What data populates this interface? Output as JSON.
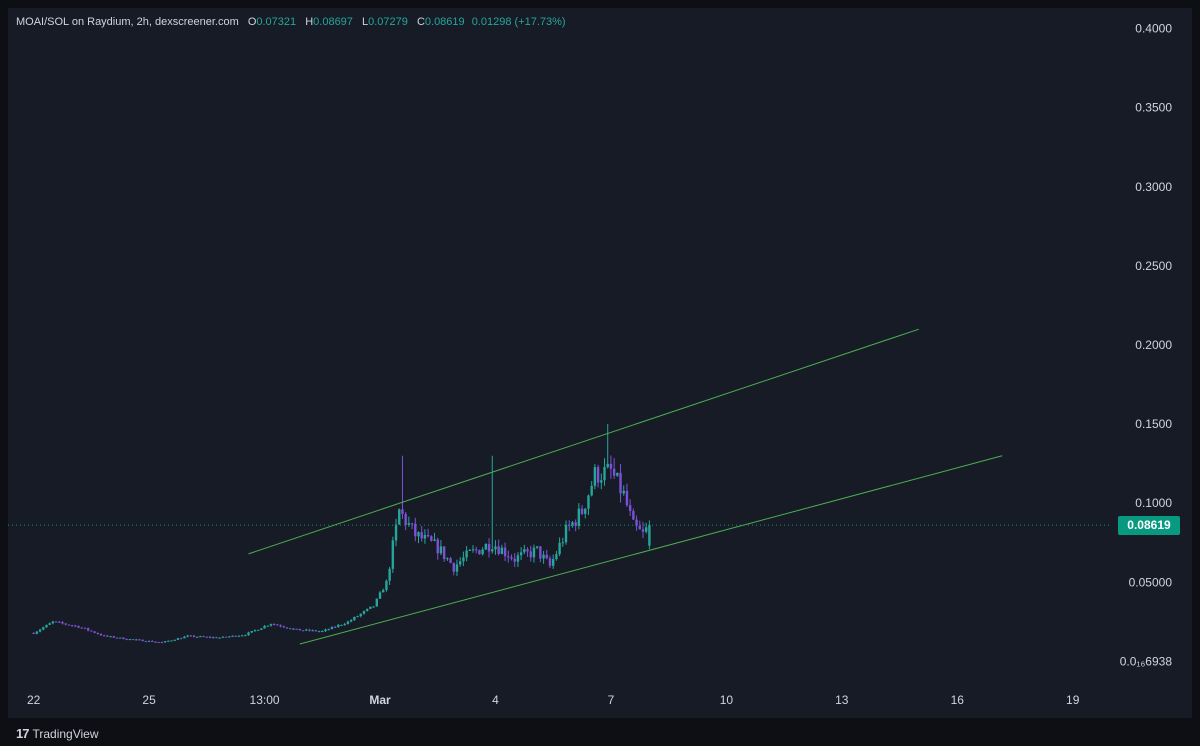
{
  "legend": {
    "title": "MOAI/SOL on Raydium, 2h, dexscreener.com",
    "o_label": "O",
    "o_value": "0.07321",
    "h_label": "H",
    "h_value": "0.08697",
    "l_label": "L",
    "l_value": "0.07279",
    "c_label": "C",
    "c_value": "0.08619",
    "change": "0.01298 (+17.73%)"
  },
  "last_price_tag": "0.08619",
  "footer": {
    "brand": "TradingView",
    "brand_mark": "17"
  },
  "colors": {
    "background": "#171b26",
    "up": "#26a69a",
    "down": "#7b52d6",
    "channel": "#4caf50",
    "axis_text": "#d1d4dc",
    "price_tag": "#089981"
  },
  "chart_data": {
    "type": "candlestick",
    "interval": "2h",
    "symbol": "MOAI/SOL",
    "y_axis": {
      "scale": "linear",
      "ticks": [
        "0.4000",
        "0.3500",
        "0.3000",
        "0.2500",
        "0.2000",
        "0.1500",
        "0.1000",
        "0.05000",
        "0.0₁₆6938"
      ],
      "tick_values": [
        0.4,
        0.35,
        0.3,
        0.25,
        0.2,
        0.15,
        0.1,
        0.05,
        0.0
      ],
      "range": [
        -0.013,
        0.413
      ]
    },
    "x_axis": {
      "ticks": [
        "22",
        "25",
        "13:00",
        "Mar",
        "4",
        "7",
        "10",
        "13",
        "16",
        "19"
      ],
      "tick_units": [
        0,
        36,
        72,
        108,
        144,
        180,
        216,
        252,
        288,
        324
      ],
      "range_units": [
        -8,
        335
      ]
    },
    "last_price": 0.08619,
    "channel_lines": [
      {
        "name": "",
        "from": [
          67,
          0.068
        ],
        "to": [
          276,
          0.21
        ]
      },
      {
        "name": "",
        "from": [
          83,
          0.011
        ],
        "to": [
          302,
          0.13
        ]
      }
    ],
    "anchors": [
      [
        0,
        0.018
      ],
      [
        6,
        0.025
      ],
      [
        14,
        0.022
      ],
      [
        22,
        0.016
      ],
      [
        30,
        0.014
      ],
      [
        40,
        0.012
      ],
      [
        48,
        0.016
      ],
      [
        58,
        0.015
      ],
      [
        66,
        0.017
      ],
      [
        74,
        0.024
      ],
      [
        82,
        0.02
      ],
      [
        90,
        0.019
      ],
      [
        98,
        0.025
      ],
      [
        106,
        0.035
      ],
      [
        110,
        0.05
      ],
      [
        114,
        0.095
      ],
      [
        119,
        0.08
      ],
      [
        126,
        0.072
      ],
      [
        131,
        0.06
      ],
      [
        136,
        0.068
      ],
      [
        143,
        0.075
      ],
      [
        150,
        0.065
      ],
      [
        157,
        0.07
      ],
      [
        161,
        0.06
      ],
      [
        166,
        0.082
      ],
      [
        171,
        0.095
      ],
      [
        175,
        0.118
      ],
      [
        180,
        0.12
      ],
      [
        184,
        0.105
      ],
      [
        187,
        0.085
      ],
      [
        190,
        0.08
      ],
      [
        192,
        0.086
      ]
    ],
    "spikes": [
      {
        "x": 115,
        "high": 0.13
      },
      {
        "x": 143,
        "high": 0.13
      },
      {
        "x": 179,
        "high": 0.15
      }
    ]
  }
}
